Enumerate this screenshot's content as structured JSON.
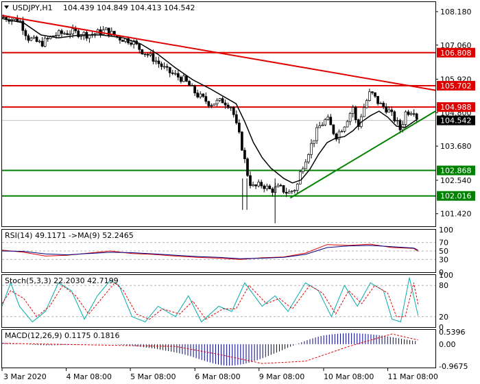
{
  "symbol_title": "USDJPY,H1",
  "ohlc_text": "104.439 104.849 104.413 104.542",
  "chart_data": [
    {
      "type": "candlestick",
      "title": "USDJPY,H1",
      "ylim": [
        101.0,
        108.5
      ],
      "y_ticks": [
        "108.180",
        "107.060",
        "105.920",
        "104.800",
        "103.680",
        "102.540",
        "101.420"
      ],
      "x_ticks": [
        "3 Mar 2020",
        "4 Mar 08:00",
        "5 Mar 08:00",
        "6 Mar 08:00",
        "9 Mar 08:00",
        "10 Mar 08:00",
        "11 Mar 08:00"
      ],
      "last_price": "104.542",
      "levels": [
        {
          "value": 106.808,
          "label": "106.808",
          "color": "#e00000"
        },
        {
          "value": 105.702,
          "label": "105.702",
          "color": "#e00000"
        },
        {
          "value": 104.988,
          "label": "104.988",
          "color": "#e00000"
        },
        {
          "value": 102.868,
          "label": "102.868",
          "color": "#008000"
        },
        {
          "value": 102.016,
          "label": "102.016",
          "color": "#008000"
        }
      ],
      "trendlines": [
        {
          "from": [
            0,
            108.05
          ],
          "to": [
            1.0,
            105.55
          ],
          "color": "#e00000"
        },
        {
          "from": [
            0.665,
            101.95
          ],
          "to": [
            1.0,
            104.85
          ],
          "color": "#008000"
        }
      ],
      "close_path": [
        [
          0.0,
          108.0
        ],
        [
          0.04,
          107.9
        ],
        [
          0.06,
          107.3
        ],
        [
          0.09,
          107.1
        ],
        [
          0.12,
          107.4
        ],
        [
          0.16,
          107.5
        ],
        [
          0.2,
          107.4
        ],
        [
          0.24,
          107.55
        ],
        [
          0.27,
          107.3
        ],
        [
          0.3,
          107.2
        ],
        [
          0.32,
          106.9
        ],
        [
          0.35,
          106.6
        ],
        [
          0.38,
          106.2
        ],
        [
          0.42,
          105.9
        ],
        [
          0.45,
          105.4
        ],
        [
          0.48,
          105.1
        ],
        [
          0.51,
          105.2
        ],
        [
          0.53,
          105.0
        ],
        [
          0.54,
          104.4
        ],
        [
          0.55,
          103.9
        ],
        [
          0.56,
          103.2
        ],
        [
          0.57,
          102.5
        ],
        [
          0.58,
          102.3
        ],
        [
          0.6,
          102.4
        ],
        [
          0.62,
          102.2
        ],
        [
          0.64,
          102.3
        ],
        [
          0.66,
          102.1
        ],
        [
          0.68,
          102.3
        ],
        [
          0.69,
          102.9
        ],
        [
          0.71,
          103.6
        ],
        [
          0.73,
          104.3
        ],
        [
          0.75,
          104.6
        ],
        [
          0.77,
          104.0
        ],
        [
          0.79,
          104.4
        ],
        [
          0.81,
          105.0
        ],
        [
          0.82,
          104.2
        ],
        [
          0.83,
          104.8
        ],
        [
          0.85,
          105.5
        ],
        [
          0.87,
          105.1
        ],
        [
          0.89,
          104.9
        ],
        [
          0.91,
          104.5
        ],
        [
          0.92,
          104.2
        ],
        [
          0.93,
          104.8
        ],
        [
          0.95,
          104.9
        ],
        [
          0.96,
          104.55
        ]
      ],
      "ma_path": [
        [
          0.0,
          107.95
        ],
        [
          0.05,
          107.8
        ],
        [
          0.09,
          107.4
        ],
        [
          0.13,
          107.3
        ],
        [
          0.18,
          107.4
        ],
        [
          0.23,
          107.4
        ],
        [
          0.28,
          107.3
        ],
        [
          0.32,
          107.1
        ],
        [
          0.36,
          106.75
        ],
        [
          0.4,
          106.3
        ],
        [
          0.44,
          105.9
        ],
        [
          0.48,
          105.6
        ],
        [
          0.51,
          105.35
        ],
        [
          0.54,
          105.1
        ],
        [
          0.56,
          104.5
        ],
        [
          0.58,
          103.8
        ],
        [
          0.6,
          103.3
        ],
        [
          0.62,
          102.95
        ],
        [
          0.65,
          102.6
        ],
        [
          0.67,
          102.45
        ],
        [
          0.69,
          102.55
        ],
        [
          0.71,
          102.9
        ],
        [
          0.73,
          103.4
        ],
        [
          0.75,
          103.8
        ],
        [
          0.77,
          103.95
        ],
        [
          0.79,
          104.0
        ],
        [
          0.81,
          104.2
        ],
        [
          0.83,
          104.5
        ],
        [
          0.85,
          104.7
        ],
        [
          0.87,
          104.85
        ],
        [
          0.89,
          104.65
        ],
        [
          0.91,
          104.35
        ],
        [
          0.93,
          104.3
        ],
        [
          0.95,
          104.5
        ],
        [
          0.96,
          104.6
        ]
      ]
    },
    {
      "type": "line",
      "title": "RSI(14) 49.1171 ->MA(9) 52.2465",
      "ylim": [
        0,
        100
      ],
      "y_ticks": [
        "100",
        "70",
        "50",
        "30",
        "0"
      ],
      "series": [
        {
          "points": [
            [
              0,
              52
            ],
            [
              0.05,
              47
            ],
            [
              0.1,
              38
            ],
            [
              0.15,
              40
            ],
            [
              0.2,
              45
            ],
            [
              0.25,
              50
            ],
            [
              0.3,
              44
            ],
            [
              0.35,
              42
            ],
            [
              0.4,
              38
            ],
            [
              0.45,
              35
            ],
            [
              0.5,
              33
            ],
            [
              0.55,
              30
            ],
            [
              0.6,
              34
            ],
            [
              0.65,
              36
            ],
            [
              0.7,
              45
            ],
            [
              0.75,
              65
            ],
            [
              0.8,
              63
            ],
            [
              0.85,
              66
            ],
            [
              0.9,
              58
            ],
            [
              0.95,
              56
            ],
            [
              0.96,
              49
            ]
          ],
          "color": "#e00000"
        },
        {
          "points": [
            [
              0,
              50
            ],
            [
              0.05,
              49
            ],
            [
              0.1,
              43
            ],
            [
              0.15,
              41
            ],
            [
              0.2,
              44
            ],
            [
              0.25,
              47
            ],
            [
              0.3,
              46
            ],
            [
              0.35,
              43
            ],
            [
              0.4,
              40
            ],
            [
              0.45,
              37
            ],
            [
              0.5,
              35
            ],
            [
              0.55,
              32
            ],
            [
              0.6,
              33
            ],
            [
              0.65,
              35
            ],
            [
              0.7,
              42
            ],
            [
              0.75,
              58
            ],
            [
              0.8,
              62
            ],
            [
              0.85,
              63
            ],
            [
              0.9,
              60
            ],
            [
              0.95,
              57
            ],
            [
              0.96,
              52
            ]
          ],
          "color": "#000080"
        }
      ]
    },
    {
      "type": "line",
      "title": "Stoch(5,3,3) 22.2030 42.7199",
      "ylim": [
        0,
        100
      ],
      "y_ticks": [
        "100",
        "80",
        "20",
        "0"
      ],
      "series": [
        {
          "points": [
            [
              0,
              40
            ],
            [
              0.02,
              85
            ],
            [
              0.04,
              40
            ],
            [
              0.07,
              10
            ],
            [
              0.1,
              30
            ],
            [
              0.13,
              85
            ],
            [
              0.16,
              70
            ],
            [
              0.19,
              15
            ],
            [
              0.22,
              60
            ],
            [
              0.25,
              90
            ],
            [
              0.27,
              80
            ],
            [
              0.3,
              20
            ],
            [
              0.33,
              10
            ],
            [
              0.36,
              40
            ],
            [
              0.4,
              20
            ],
            [
              0.43,
              60
            ],
            [
              0.46,
              10
            ],
            [
              0.5,
              40
            ],
            [
              0.53,
              30
            ],
            [
              0.56,
              85
            ],
            [
              0.6,
              40
            ],
            [
              0.63,
              60
            ],
            [
              0.66,
              30
            ],
            [
              0.7,
              85
            ],
            [
              0.73,
              70
            ],
            [
              0.76,
              20
            ],
            [
              0.79,
              80
            ],
            [
              0.82,
              40
            ],
            [
              0.85,
              85
            ],
            [
              0.88,
              70
            ],
            [
              0.9,
              15
            ],
            [
              0.92,
              10
            ],
            [
              0.94,
              95
            ],
            [
              0.96,
              22
            ]
          ],
          "color": "#00aaaa"
        },
        {
          "points": [
            [
              0,
              45
            ],
            [
              0.02,
              70
            ],
            [
              0.05,
              55
            ],
            [
              0.08,
              20
            ],
            [
              0.11,
              40
            ],
            [
              0.14,
              80
            ],
            [
              0.17,
              60
            ],
            [
              0.2,
              25
            ],
            [
              0.23,
              55
            ],
            [
              0.26,
              85
            ],
            [
              0.28,
              70
            ],
            [
              0.31,
              25
            ],
            [
              0.34,
              15
            ],
            [
              0.37,
              35
            ],
            [
              0.41,
              25
            ],
            [
              0.44,
              50
            ],
            [
              0.47,
              15
            ],
            [
              0.51,
              35
            ],
            [
              0.54,
              35
            ],
            [
              0.57,
              80
            ],
            [
              0.61,
              45
            ],
            [
              0.64,
              55
            ],
            [
              0.67,
              35
            ],
            [
              0.71,
              80
            ],
            [
              0.74,
              65
            ],
            [
              0.77,
              25
            ],
            [
              0.8,
              70
            ],
            [
              0.83,
              45
            ],
            [
              0.86,
              80
            ],
            [
              0.89,
              65
            ],
            [
              0.91,
              20
            ],
            [
              0.93,
              20
            ],
            [
              0.95,
              85
            ],
            [
              0.96,
              43
            ]
          ],
          "color": "#e00000"
        }
      ]
    },
    {
      "type": "bar",
      "title": "MACD(12,26,9) 0.1175 0.1816",
      "ylim": [
        -0.9675,
        0.5396
      ],
      "y_ticks": [
        "0.5396",
        "0.00",
        "-0.9675"
      ],
      "histogram": [
        0.05,
        0.04,
        0.02,
        0.0,
        -0.02,
        -0.04,
        -0.05,
        -0.05,
        -0.04,
        -0.03,
        -0.02,
        -0.01,
        0.0,
        0.01,
        0.01,
        0.0,
        -0.02,
        -0.05,
        -0.08,
        -0.12,
        -0.16,
        -0.2,
        -0.26,
        -0.32,
        -0.38,
        -0.46,
        -0.55,
        -0.66,
        -0.76,
        -0.85,
        -0.92,
        -0.95,
        -0.93,
        -0.88,
        -0.8,
        -0.7,
        -0.58,
        -0.45,
        -0.32,
        -0.18,
        -0.05,
        0.08,
        0.2,
        0.3,
        0.38,
        0.43,
        0.46,
        0.48,
        0.49,
        0.47,
        0.45,
        0.42,
        0.38,
        0.33,
        0.28,
        0.22,
        0.17,
        0.12
      ],
      "signal": [
        [
          0,
          0.04
        ],
        [
          0.2,
          -0.03
        ],
        [
          0.4,
          -0.1
        ],
        [
          0.5,
          -0.45
        ],
        [
          0.6,
          -0.85
        ],
        [
          0.7,
          -0.75
        ],
        [
          0.8,
          -0.1
        ],
        [
          0.9,
          0.45
        ],
        [
          0.96,
          0.18
        ]
      ]
    }
  ]
}
